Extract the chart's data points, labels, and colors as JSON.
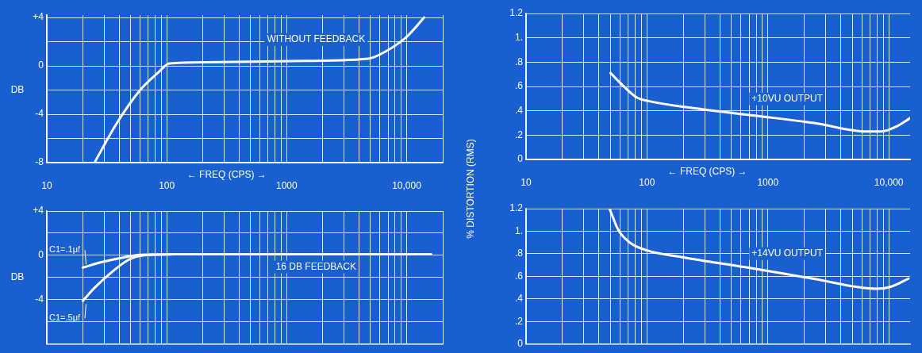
{
  "chart_data": [
    {
      "type": "line",
      "xlabel": "← FREQ (CPS) →",
      "ylabel": "DB",
      "log": "x",
      "grid": true,
      "xlim": [
        10,
        20000
      ],
      "ylim": [
        -8,
        4.2
      ],
      "xticks": [
        10,
        {
          "value": 20,
          "label": null
        },
        {
          "value": 30,
          "label": null
        },
        {
          "value": 40,
          "label": null
        },
        {
          "value": 50,
          "label": null
        },
        {
          "value": 60,
          "label": null
        },
        {
          "value": 70,
          "label": null
        },
        {
          "value": 80,
          "label": null
        },
        {
          "value": 90,
          "label": null
        },
        100,
        {
          "value": 200,
          "label": null
        },
        {
          "value": 300,
          "label": null
        },
        {
          "value": 400,
          "label": null
        },
        {
          "value": 500,
          "label": null
        },
        {
          "value": 600,
          "label": null
        },
        {
          "value": 700,
          "label": null
        },
        {
          "value": 800,
          "label": null
        },
        {
          "value": 900,
          "label": null
        },
        1000,
        {
          "value": 2000,
          "label": null
        },
        {
          "value": 3000,
          "label": null
        },
        {
          "value": 4000,
          "label": null
        },
        {
          "value": 5000,
          "label": null
        },
        {
          "value": 6000,
          "label": null
        },
        {
          "value": 7000,
          "label": null
        },
        {
          "value": 8000,
          "label": null
        },
        {
          "value": 9000,
          "label": null
        },
        {
          "value": 10000,
          "label": "10,000"
        },
        {
          "value": 20000,
          "label": null
        }
      ],
      "yticks": [
        {
          "value": 4,
          "label": "+4"
        },
        {
          "value": 2,
          "label": null
        },
        0,
        {
          "value": -2,
          "label": null
        },
        -4,
        {
          "value": -6,
          "label": null
        },
        -8
      ],
      "series": [
        {
          "name": "WITHOUT FEEDBACK",
          "color": "#ffffff",
          "x": [
            25,
            38,
            60,
            85,
            105,
            210,
            1100,
            4800,
            6700,
            10000,
            14000
          ],
          "values": [
            -8,
            -4.8,
            -2,
            -0.55,
            0.2,
            0.3,
            0.4,
            0.6,
            1.2,
            2.4,
            4
          ]
        }
      ]
    },
    {
      "type": "line",
      "ylabel": "DB",
      "log": "x",
      "grid": true,
      "tick_labels": "y",
      "xlim": [
        10,
        20000
      ],
      "ylim": [
        -8,
        4
      ],
      "xticks": [
        {
          "value": 10,
          "label": null
        },
        {
          "value": 20,
          "label": null
        },
        {
          "value": 30,
          "label": null
        },
        {
          "value": 40,
          "label": null
        },
        {
          "value": 50,
          "label": null
        },
        {
          "value": 60,
          "label": null
        },
        {
          "value": 70,
          "label": null
        },
        {
          "value": 80,
          "label": null
        },
        {
          "value": 90,
          "label": null
        },
        {
          "value": 100,
          "label": null
        },
        {
          "value": 200,
          "label": null
        },
        {
          "value": 300,
          "label": null
        },
        {
          "value": 400,
          "label": null
        },
        {
          "value": 500,
          "label": null
        },
        {
          "value": 600,
          "label": null
        },
        {
          "value": 700,
          "label": null
        },
        {
          "value": 800,
          "label": null
        },
        {
          "value": 900,
          "label": null
        },
        {
          "value": 1000,
          "label": null
        },
        {
          "value": 2000,
          "label": null
        },
        {
          "value": 3000,
          "label": null
        },
        {
          "value": 4000,
          "label": null
        },
        {
          "value": 5000,
          "label": null
        },
        {
          "value": 6000,
          "label": null
        },
        {
          "value": 7000,
          "label": null
        },
        {
          "value": 8000,
          "label": null
        },
        {
          "value": 9000,
          "label": null
        },
        {
          "value": 10000,
          "label": null
        },
        {
          "value": 20000,
          "label": null
        }
      ],
      "yticks": [
        {
          "value": 4,
          "label": "+4"
        },
        {
          "value": 2,
          "label": null
        },
        0,
        {
          "value": -2,
          "label": null
        },
        -4,
        {
          "value": -6,
          "label": null
        },
        {
          "value": -8,
          "label": null
        }
      ],
      "series": [
        {
          "name": "C1=.1μf",
          "color": "#ffffff",
          "x": [
            20,
            29,
            43,
            60,
            117,
            16000
          ],
          "values": [
            -1.1,
            -0.6,
            -0.2,
            0.05,
            0.1,
            0.1
          ]
        },
        {
          "name": "C1=.5μf",
          "color": "#ffffff",
          "x": [
            20,
            24.6,
            34,
            48,
            63,
            117
          ],
          "values": [
            -4.1,
            -3,
            -1.6,
            -0.4,
            0,
            0.1
          ]
        }
      ],
      "annotations": [
        "16 DB FEEDBACK"
      ]
    },
    {
      "type": "line",
      "xlabel": "← FREQ (CPS) →",
      "ylabel": "% DISTORTION (RMS)",
      "log": "x",
      "grid": true,
      "xlim": [
        10,
        15000
      ],
      "ylim": [
        0,
        1.2
      ],
      "xticks": [
        10,
        {
          "value": 20,
          "label": null
        },
        {
          "value": 30,
          "label": null
        },
        {
          "value": 40,
          "label": null
        },
        {
          "value": 50,
          "label": null
        },
        {
          "value": 60,
          "label": null
        },
        {
          "value": 70,
          "label": null
        },
        {
          "value": 80,
          "label": null
        },
        {
          "value": 90,
          "label": null
        },
        100,
        {
          "value": 200,
          "label": null
        },
        {
          "value": 300,
          "label": null
        },
        {
          "value": 400,
          "label": null
        },
        {
          "value": 500,
          "label": null
        },
        {
          "value": 600,
          "label": null
        },
        {
          "value": 700,
          "label": null
        },
        {
          "value": 800,
          "label": null
        },
        {
          "value": 900,
          "label": null
        },
        1000,
        {
          "value": 2000,
          "label": null
        },
        {
          "value": 3000,
          "label": null
        },
        {
          "value": 4000,
          "label": null
        },
        {
          "value": 5000,
          "label": null
        },
        {
          "value": 6000,
          "label": null
        },
        {
          "value": 7000,
          "label": null
        },
        {
          "value": 8000,
          "label": null
        },
        {
          "value": 9000,
          "label": null
        },
        {
          "value": 10000,
          "label": "10,000"
        }
      ],
      "yticks": [
        0,
        {
          "value": 0.2,
          "label": ".2"
        },
        {
          "value": 0.4,
          "label": ".4"
        },
        {
          "value": 0.6,
          "label": ".6"
        },
        {
          "value": 0.8,
          "label": ".8"
        },
        {
          "value": 1,
          "label": "1."
        },
        1.2
      ],
      "series": [
        {
          "name": "+10VU OUTPUT",
          "color": "#ffffff",
          "x": [
            50,
            66,
            82,
            103,
            250,
            780,
            2400,
            6600,
            8700,
            11500,
            15000
          ],
          "values": [
            0.71,
            0.59,
            0.51,
            0.48,
            0.42,
            0.36,
            0.3,
            0.23,
            0.23,
            0.27,
            0.34
          ]
        }
      ]
    },
    {
      "type": "line",
      "log": "x",
      "grid": true,
      "tick_labels": "y",
      "xlim": [
        10,
        15000
      ],
      "ylim": [
        0,
        1.2
      ],
      "xticks": [
        {
          "value": 10,
          "label": null
        },
        {
          "value": 20,
          "label": null
        },
        {
          "value": 30,
          "label": null
        },
        {
          "value": 40,
          "label": null
        },
        {
          "value": 50,
          "label": null
        },
        {
          "value": 60,
          "label": null
        },
        {
          "value": 70,
          "label": null
        },
        {
          "value": 80,
          "label": null
        },
        {
          "value": 90,
          "label": null
        },
        {
          "value": 100,
          "label": null
        },
        {
          "value": 200,
          "label": null
        },
        {
          "value": 300,
          "label": null
        },
        {
          "value": 400,
          "label": null
        },
        {
          "value": 500,
          "label": null
        },
        {
          "value": 600,
          "label": null
        },
        {
          "value": 700,
          "label": null
        },
        {
          "value": 800,
          "label": null
        },
        {
          "value": 900,
          "label": null
        },
        {
          "value": 1000,
          "label": null
        },
        {
          "value": 2000,
          "label": null
        },
        {
          "value": 3000,
          "label": null
        },
        {
          "value": 4000,
          "label": null
        },
        {
          "value": 5000,
          "label": null
        },
        {
          "value": 6000,
          "label": null
        },
        {
          "value": 7000,
          "label": null
        },
        {
          "value": 8000,
          "label": null
        },
        {
          "value": 9000,
          "label": null
        },
        {
          "value": 10000,
          "label": null
        }
      ],
      "yticks": [
        0,
        {
          "value": 0.2,
          "label": ".2"
        },
        {
          "value": 0.4,
          "label": ".4"
        },
        {
          "value": 0.6,
          "label": ".6"
        },
        {
          "value": 0.8,
          "label": ".8"
        },
        {
          "value": 1,
          "label": "1."
        },
        1.2
      ],
      "series": [
        {
          "name": "+14VU OUTPUT",
          "color": "#ffffff",
          "x": [
            49,
            58,
            72,
            100,
            195,
            760,
            2350,
            8000,
            10500,
            14500
          ],
          "values": [
            1.2,
            1.01,
            0.9,
            0.83,
            0.77,
            0.67,
            0.58,
            0.49,
            0.51,
            0.58
          ]
        }
      ]
    }
  ]
}
